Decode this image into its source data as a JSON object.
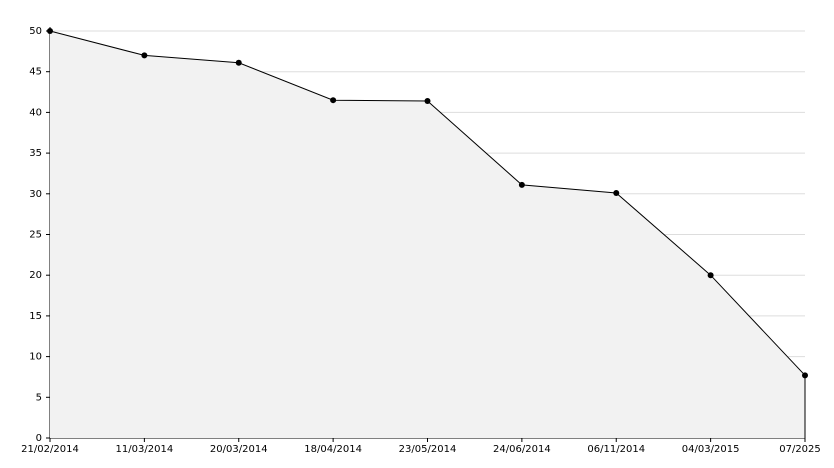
{
  "chart_data": {
    "type": "area",
    "categories": [
      "21/02/2014",
      "11/03/2014",
      "20/03/2014",
      "18/04/2014",
      "23/05/2014",
      "24/06/2014",
      "06/11/2014",
      "04/03/2015",
      "07/2025"
    ],
    "values": [
      50,
      47,
      46.1,
      41.5,
      41.4,
      31.1,
      30.1,
      20,
      7.7
    ],
    "color": "#000000",
    "fill": "#f2f2f2",
    "ylim": [
      0,
      50
    ],
    "yticks": [
      0,
      5,
      10,
      15,
      20,
      25,
      30,
      35,
      40,
      45,
      50
    ],
    "grid": true
  }
}
